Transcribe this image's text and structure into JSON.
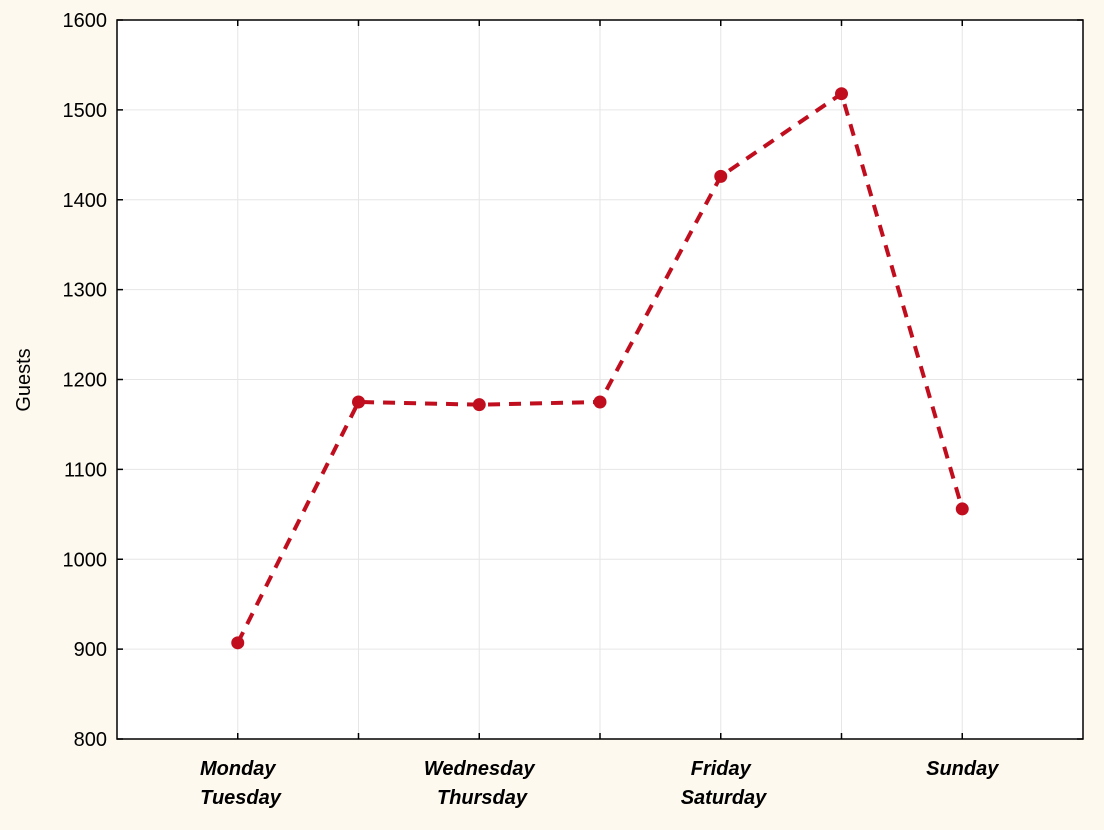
{
  "chart_data": {
    "type": "line",
    "title": "",
    "xlabel": "",
    "ylabel": "Guests",
    "categories": [
      "Monday",
      "Tuesday",
      "Wednesday",
      "Thursday",
      "Friday",
      "Saturday",
      "Sunday"
    ],
    "series": [
      {
        "values": [
          907,
          1175,
          1172,
          1175,
          1426,
          1518,
          1056
        ],
        "color": "#c00e1e"
      }
    ],
    "ylim": [
      800,
      1600
    ],
    "yticks": [
      800,
      900,
      1000,
      1100,
      1200,
      1300,
      1400,
      1500,
      1600
    ],
    "line_style": "dashed",
    "marker": "circle",
    "grid": true,
    "legend": "none"
  }
}
